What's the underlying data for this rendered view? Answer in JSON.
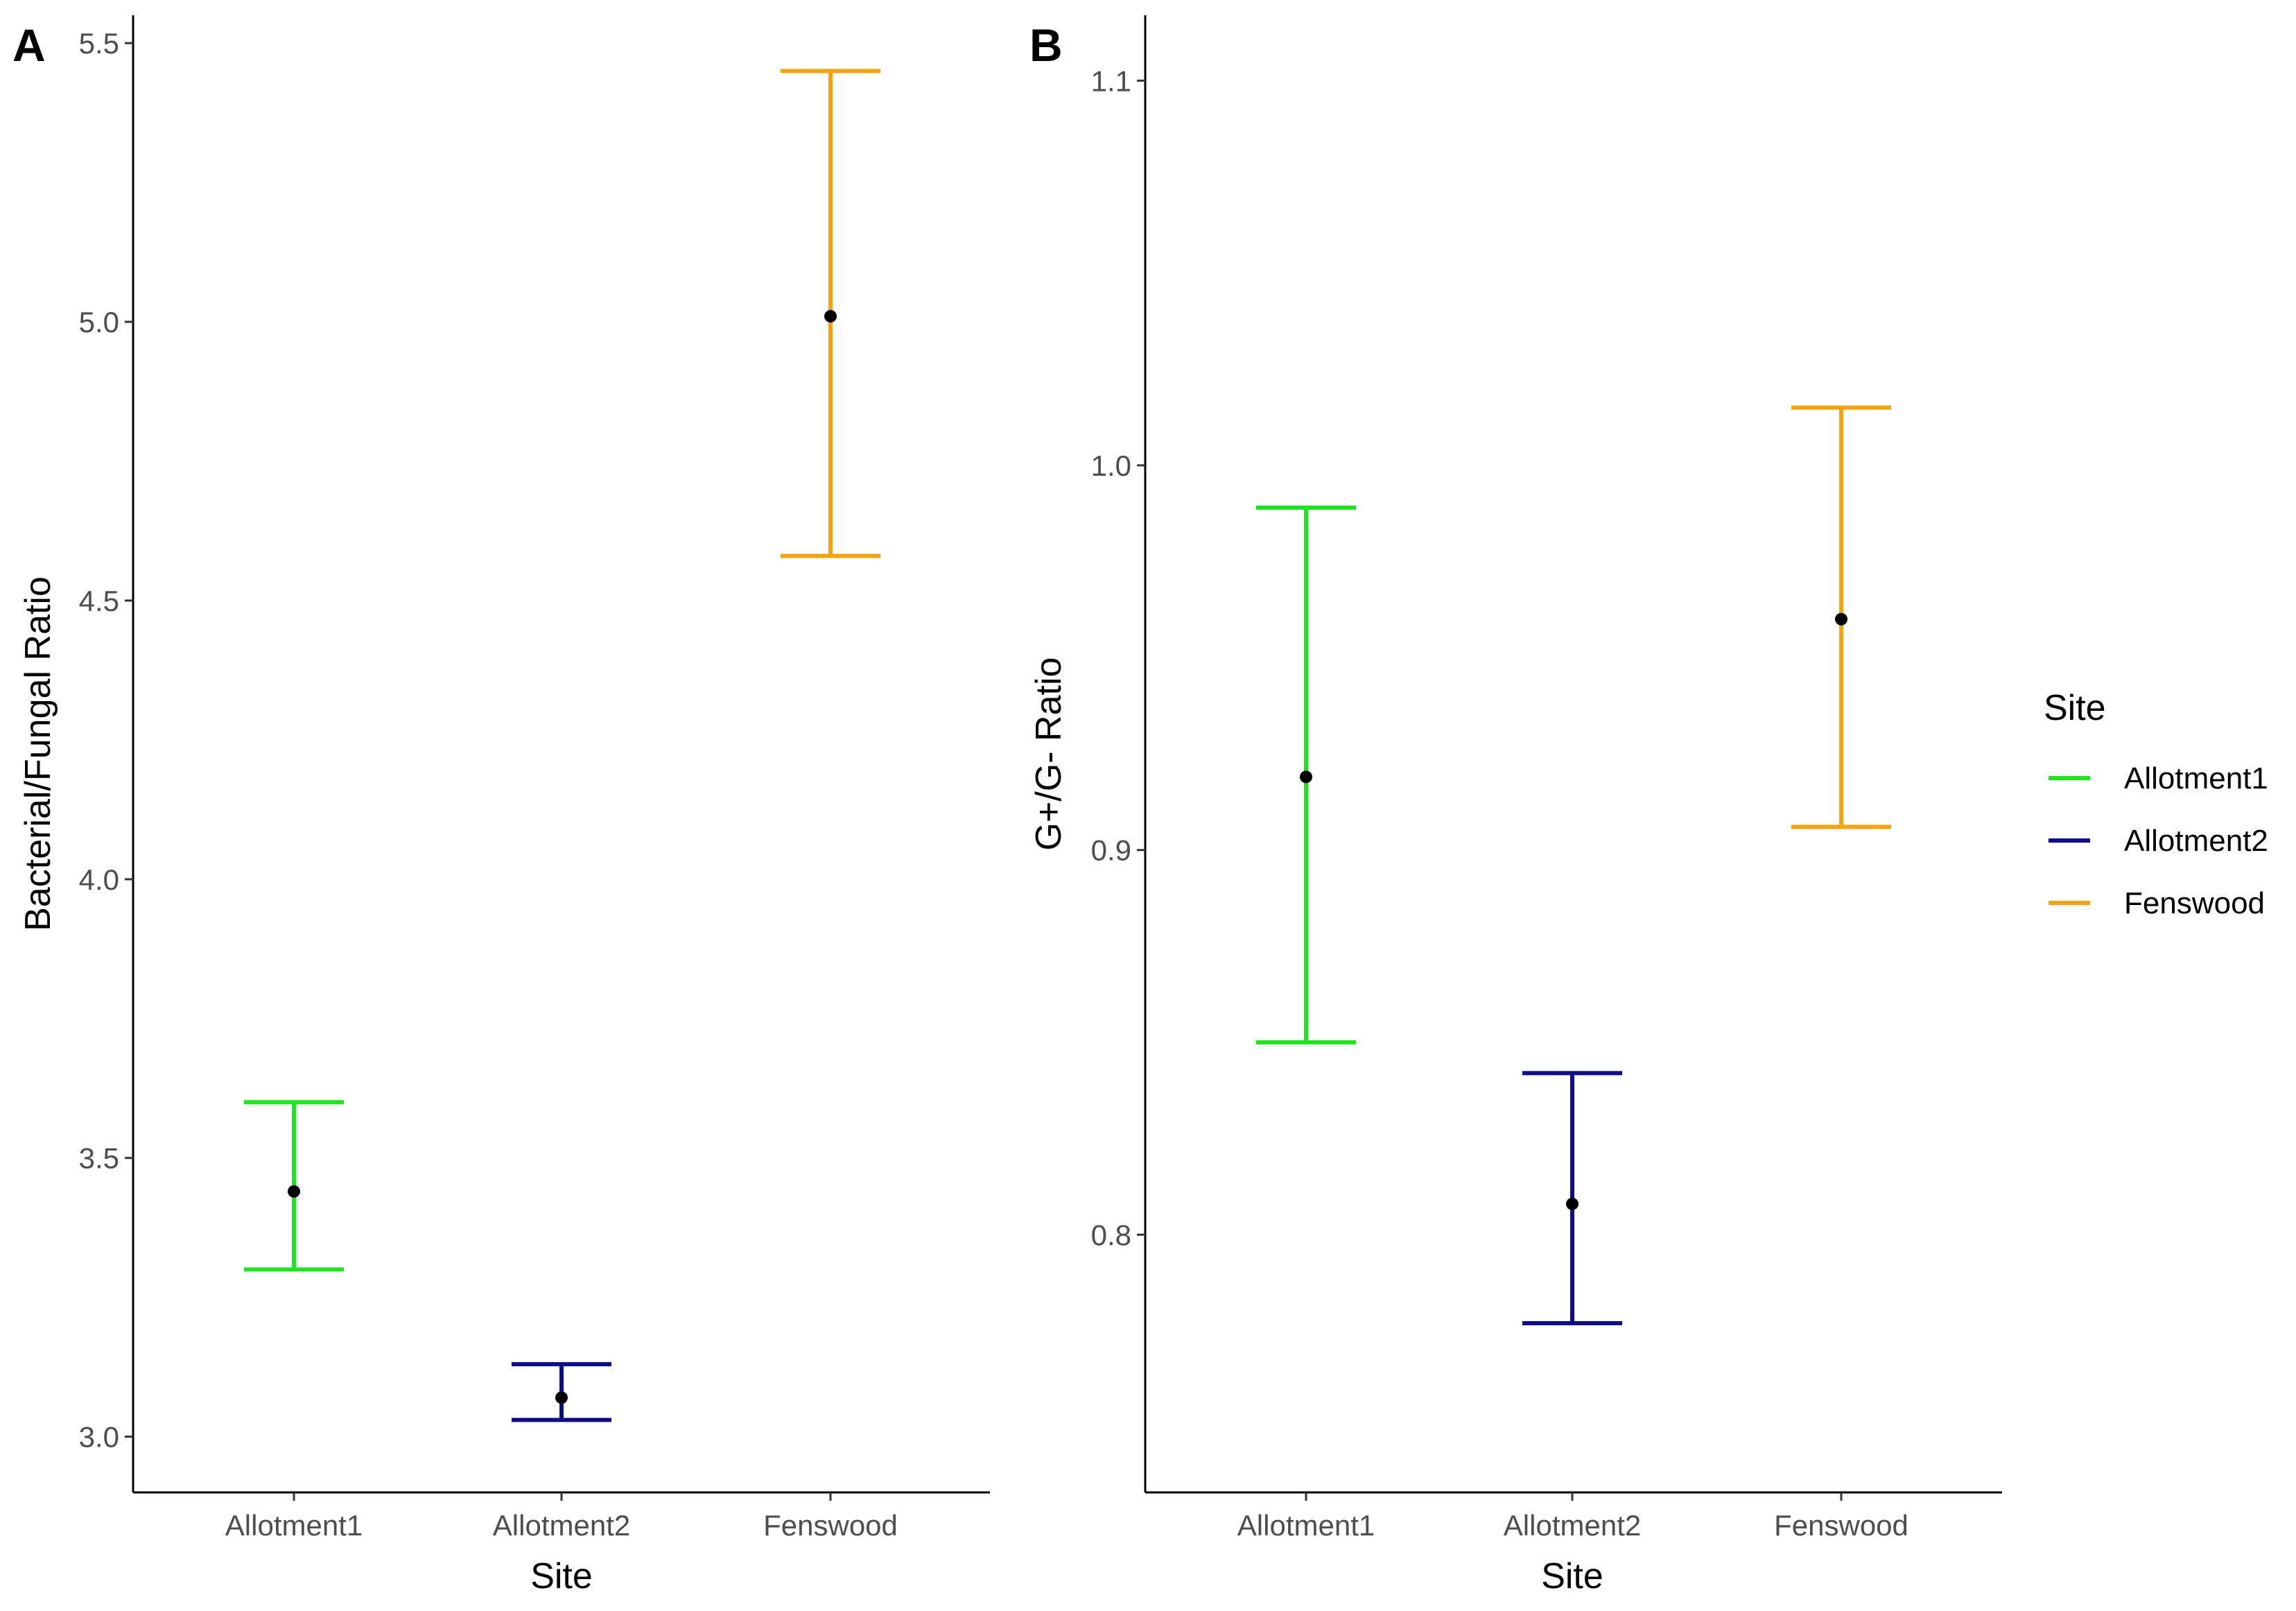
{
  "chart_data": [
    {
      "panel": "A",
      "type": "errorbar",
      "title": "",
      "xlabel": "Site",
      "ylabel": "Bacterial/Fungal Ratio",
      "categories": [
        "Allotment1",
        "Allotment2",
        "Fenswood"
      ],
      "yticks": [
        "3.0",
        "3.5",
        "4.0",
        "4.5",
        "5.0",
        "5.5"
      ],
      "ylim": [
        2.9,
        5.55
      ],
      "series": [
        {
          "name": "Allotment1",
          "mean": 3.44,
          "lower": 3.3,
          "upper": 3.6
        },
        {
          "name": "Allotment2",
          "mean": 3.07,
          "lower": 3.03,
          "upper": 3.13
        },
        {
          "name": "Fenswood",
          "mean": 5.01,
          "lower": 4.58,
          "upper": 5.45
        }
      ]
    },
    {
      "panel": "B",
      "type": "errorbar",
      "title": "",
      "xlabel": "Site",
      "ylabel": "G+/G- Ratio",
      "categories": [
        "Allotment1",
        "Allotment2",
        "Fenswood"
      ],
      "yticks": [
        "0.8",
        "0.9",
        "1.0",
        "1.1"
      ],
      "ylim": [
        0.733,
        1.117
      ],
      "series": [
        {
          "name": "Allotment1",
          "mean": 0.919,
          "lower": 0.85,
          "upper": 0.989
        },
        {
          "name": "Allotment2",
          "mean": 0.808,
          "lower": 0.777,
          "upper": 0.842
        },
        {
          "name": "Fenswood",
          "mean": 0.96,
          "lower": 0.906,
          "upper": 1.015
        }
      ]
    }
  ],
  "legend": {
    "title": "Site",
    "items": [
      {
        "label": "Allotment1",
        "color": "#1ee61e"
      },
      {
        "label": "Allotment2",
        "color": "#0d0d8c"
      },
      {
        "label": "Fenswood",
        "color": "#f5a20f"
      }
    ]
  }
}
